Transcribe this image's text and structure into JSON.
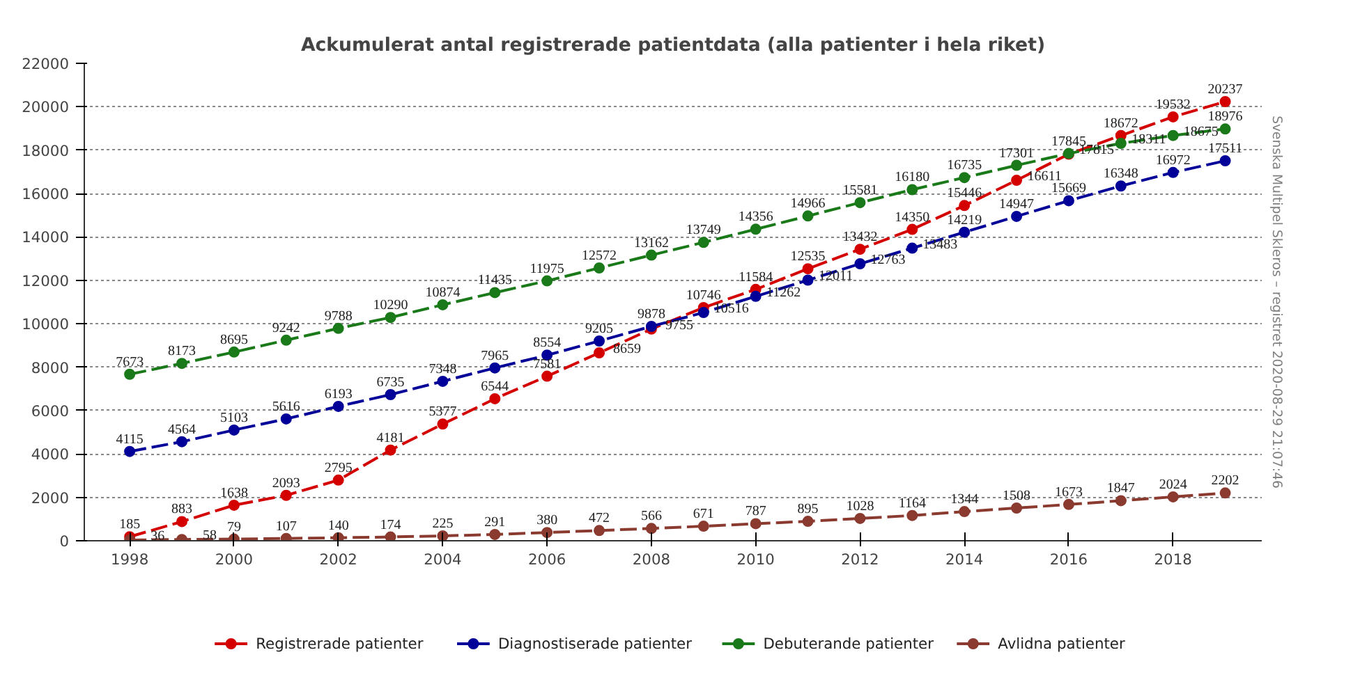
{
  "chart_data": {
    "type": "line",
    "title": "Ackumulerat antal registrerade patientdata (alla patienter i hela riket)",
    "x": [
      1998,
      1999,
      2000,
      2001,
      2002,
      2003,
      2004,
      2005,
      2006,
      2007,
      2008,
      2009,
      2010,
      2011,
      2012,
      2013,
      2014,
      2015,
      2016,
      2017,
      2018,
      2019
    ],
    "series": [
      {
        "name": "Registrerade patienter",
        "color": "#d40000",
        "values": [
          185,
          883,
          1638,
          2093,
          2795,
          4181,
          5377,
          6544,
          7581,
          8659,
          9755,
          10746,
          11584,
          12535,
          13432,
          14350,
          15446,
          16611,
          17815,
          18672,
          19532,
          20237
        ]
      },
      {
        "name": "Diagnostiserade patienter",
        "color": "#000099",
        "values": [
          4115,
          4564,
          5103,
          5616,
          6193,
          6735,
          7348,
          7965,
          8554,
          9205,
          9878,
          10516,
          11262,
          12011,
          12763,
          13483,
          14219,
          14947,
          15669,
          16348,
          16972,
          17511
        ]
      },
      {
        "name": "Debuterande patienter",
        "color": "#1a7a1a",
        "values": [
          7673,
          8173,
          8695,
          9242,
          9788,
          10290,
          10874,
          11435,
          11975,
          12572,
          13162,
          13749,
          14356,
          14966,
          15581,
          16180,
          16735,
          17301,
          17845,
          18311,
          18675,
          18976
        ]
      },
      {
        "name": "Avlidna patienter",
        "color": "#8b3a2f",
        "values": [
          36,
          58,
          79,
          107,
          140,
          174,
          225,
          291,
          380,
          472,
          566,
          671,
          787,
          895,
          1028,
          1164,
          1344,
          1508,
          1673,
          1847,
          2024,
          2202
        ]
      }
    ],
    "xlim": [
      1997.13,
      2019.7
    ],
    "xticks": [
      1998,
      2000,
      2002,
      2004,
      2006,
      2008,
      2010,
      2012,
      2014,
      2016,
      2018
    ],
    "ylim": [
      0,
      22000
    ],
    "yticks": [
      0,
      2000,
      4000,
      6000,
      8000,
      10000,
      12000,
      14000,
      16000,
      18000,
      20000,
      22000
    ],
    "grid": "y",
    "legend": "bottom",
    "marker": "circle",
    "line_style": "dashed",
    "data_labels": true,
    "annotations": [
      "Svenska Multipel Skleros – registret 2020-08-29 21:07:46"
    ]
  }
}
